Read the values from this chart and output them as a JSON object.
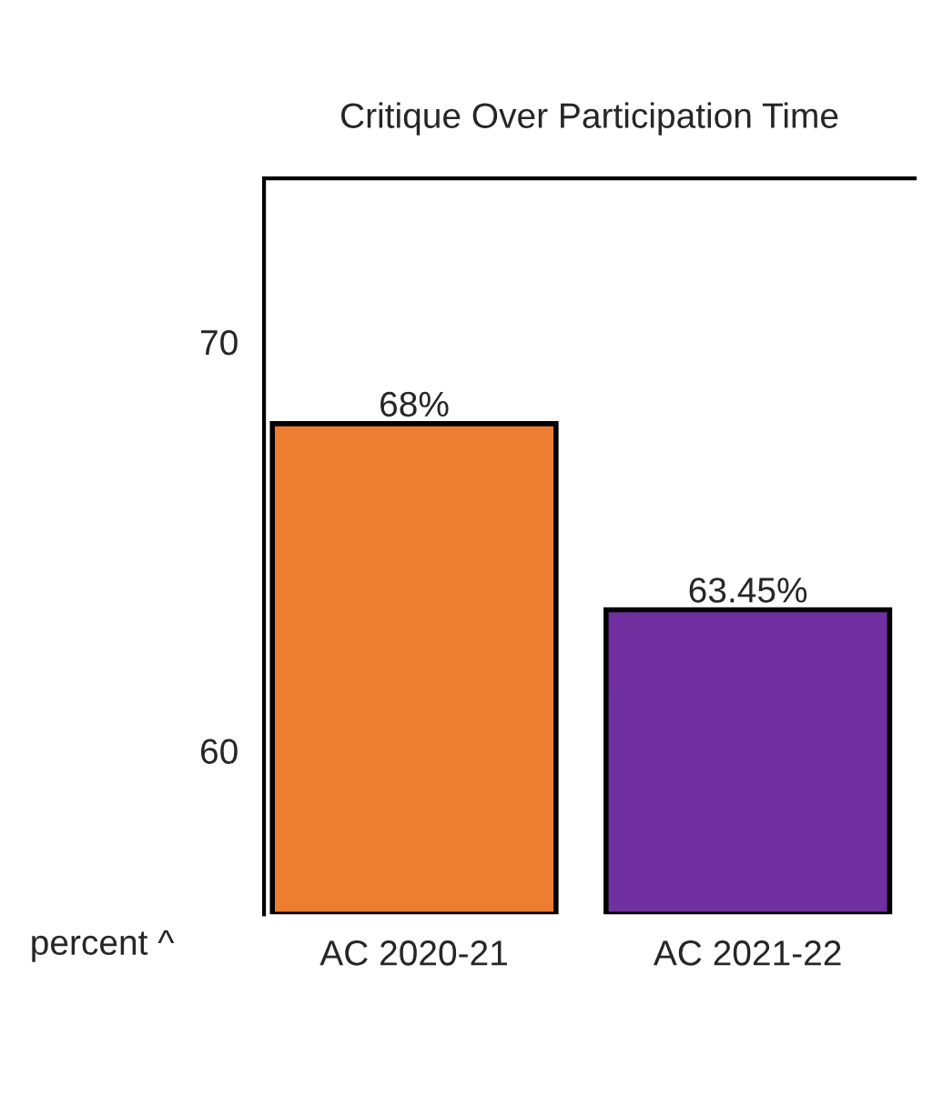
{
  "chart_data": {
    "type": "bar",
    "title": "Critique Over Participation Time",
    "categories": [
      "AC 2020-21",
      "AC 2021-22"
    ],
    "values": [
      68,
      63.45
    ],
    "colors": [
      "#ed7d31",
      "#7030a0"
    ],
    "value_labels": [
      "68%",
      "63.45%"
    ],
    "ylabel": "percent ^",
    "ylim": [
      56,
      74
    ],
    "yticks": [
      60,
      70
    ],
    "grid": false,
    "legend": false
  }
}
